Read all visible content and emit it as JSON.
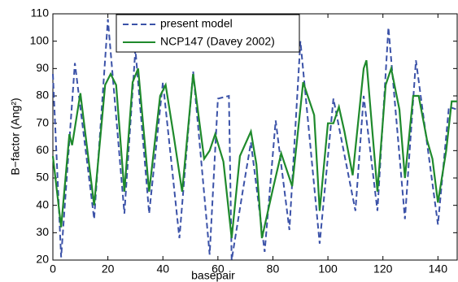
{
  "chart_data": {
    "type": "line",
    "y_label": "B−factor (Ang²)",
    "x_label": "basepair",
    "xlim": [
      0,
      147
    ],
    "xticks": [
      0,
      20,
      40,
      60,
      80,
      100,
      120,
      140
    ],
    "ylim": [
      20,
      110
    ],
    "yticks": [
      20,
      30,
      40,
      50,
      60,
      70,
      80,
      90,
      100,
      110
    ],
    "grid": false,
    "legend": "upper-left",
    "series": [
      {
        "name": "present model",
        "color": "#3b52a8",
        "dash": true,
        "x": [
          0,
          3,
          8,
          15,
          20,
          26,
          30,
          35,
          40,
          46,
          51,
          57,
          60,
          64,
          65,
          69,
          72,
          77,
          81,
          86,
          90,
          97,
          102,
          110,
          113,
          118,
          122,
          128,
          132,
          140,
          144,
          147
        ],
        "values": [
          88,
          21,
          92,
          35,
          108,
          37,
          97,
          37,
          85,
          28,
          89,
          22,
          79,
          80,
          20,
          45,
          63,
          23,
          71,
          31,
          100,
          26,
          79,
          38,
          80,
          38,
          105,
          35,
          93,
          33,
          76,
          75
        ]
      },
      {
        "name": "NCP147 (Davey 2002)",
        "color": "#1f8a2c",
        "dash": false,
        "x": [
          0,
          3,
          6,
          7,
          10,
          15,
          19,
          21,
          23,
          26,
          29,
          31,
          35,
          39,
          41,
          44,
          47,
          51,
          55,
          57,
          59,
          62,
          65,
          68,
          72,
          74,
          76,
          80,
          83,
          87,
          91,
          95,
          97,
          100,
          102,
          104,
          106,
          109,
          113,
          114,
          118,
          121,
          123,
          126,
          128,
          131,
          133,
          136,
          138,
          140,
          143,
          145,
          147
        ],
        "values": [
          58,
          32,
          66,
          62,
          81,
          40,
          84,
          88,
          84,
          45,
          85,
          90,
          45,
          80,
          84,
          65,
          45,
          88,
          57,
          60,
          66,
          56,
          28,
          58,
          67,
          55,
          28,
          46,
          59,
          47,
          85,
          73,
          38,
          70,
          70,
          76,
          67,
          51,
          90,
          93,
          45,
          84,
          90,
          75,
          50,
          80,
          80,
          64,
          57,
          41,
          60,
          78,
          78
        ]
      }
    ]
  }
}
